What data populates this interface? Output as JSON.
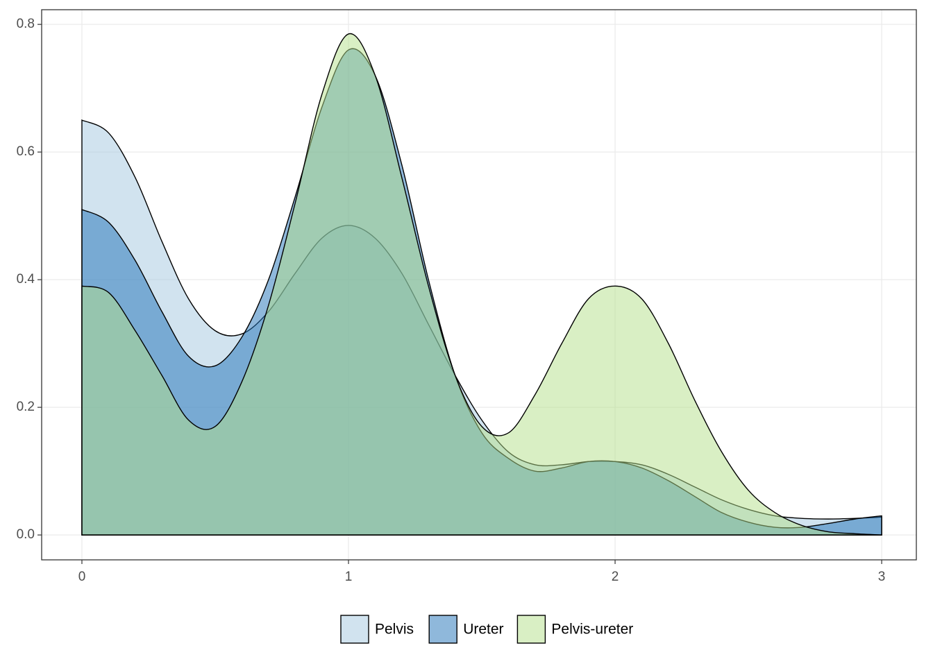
{
  "chart_data": {
    "type": "area",
    "x": [
      0,
      0.1,
      0.2,
      0.3,
      0.4,
      0.5,
      0.6,
      0.7,
      0.8,
      0.9,
      1,
      1.1,
      1.2,
      1.3,
      1.4,
      1.5,
      1.6,
      1.7,
      1.8,
      1.9,
      2,
      2.1,
      2.2,
      2.3,
      2.4,
      2.5,
      2.6,
      2.7,
      2.8,
      2.9,
      3
    ],
    "series": [
      {
        "name": "Pelvis",
        "color": "#a3c8e0",
        "values": [
          0.65,
          0.63,
          0.56,
          0.46,
          0.37,
          0.32,
          0.315,
          0.35,
          0.41,
          0.465,
          0.485,
          0.465,
          0.41,
          0.33,
          0.25,
          0.18,
          0.13,
          0.11,
          0.11,
          0.115,
          0.115,
          0.11,
          0.095,
          0.075,
          0.055,
          0.04,
          0.03,
          0.026,
          0.025,
          0.026,
          0.028
        ]
      },
      {
        "name": "Ureter",
        "color": "#1f72b8",
        "values": [
          0.51,
          0.49,
          0.43,
          0.35,
          0.28,
          0.265,
          0.31,
          0.4,
          0.53,
          0.67,
          0.76,
          0.72,
          0.58,
          0.4,
          0.25,
          0.16,
          0.12,
          0.1,
          0.105,
          0.115,
          0.115,
          0.105,
          0.085,
          0.06,
          0.035,
          0.02,
          0.012,
          0.012,
          0.018,
          0.025,
          0.03
        ]
      },
      {
        "name": "Pelvis-ureter",
        "color": "#b3df8a",
        "values": [
          0.39,
          0.38,
          0.32,
          0.25,
          0.18,
          0.17,
          0.24,
          0.36,
          0.52,
          0.69,
          0.785,
          0.72,
          0.56,
          0.39,
          0.25,
          0.17,
          0.16,
          0.22,
          0.3,
          0.37,
          0.39,
          0.37,
          0.3,
          0.21,
          0.13,
          0.07,
          0.035,
          0.015,
          0.005,
          0.002,
          0
        ]
      }
    ],
    "xlim": [
      -0.151,
      3.13
    ],
    "ylim": [
      -0.039,
      0.823
    ],
    "xticks": [
      0,
      1,
      2,
      3
    ],
    "yticks": [
      {
        "value": 0,
        "label": "0.0"
      },
      0.2,
      0.4,
      0.6,
      0.8
    ],
    "grid": true,
    "legend": "bottom"
  }
}
